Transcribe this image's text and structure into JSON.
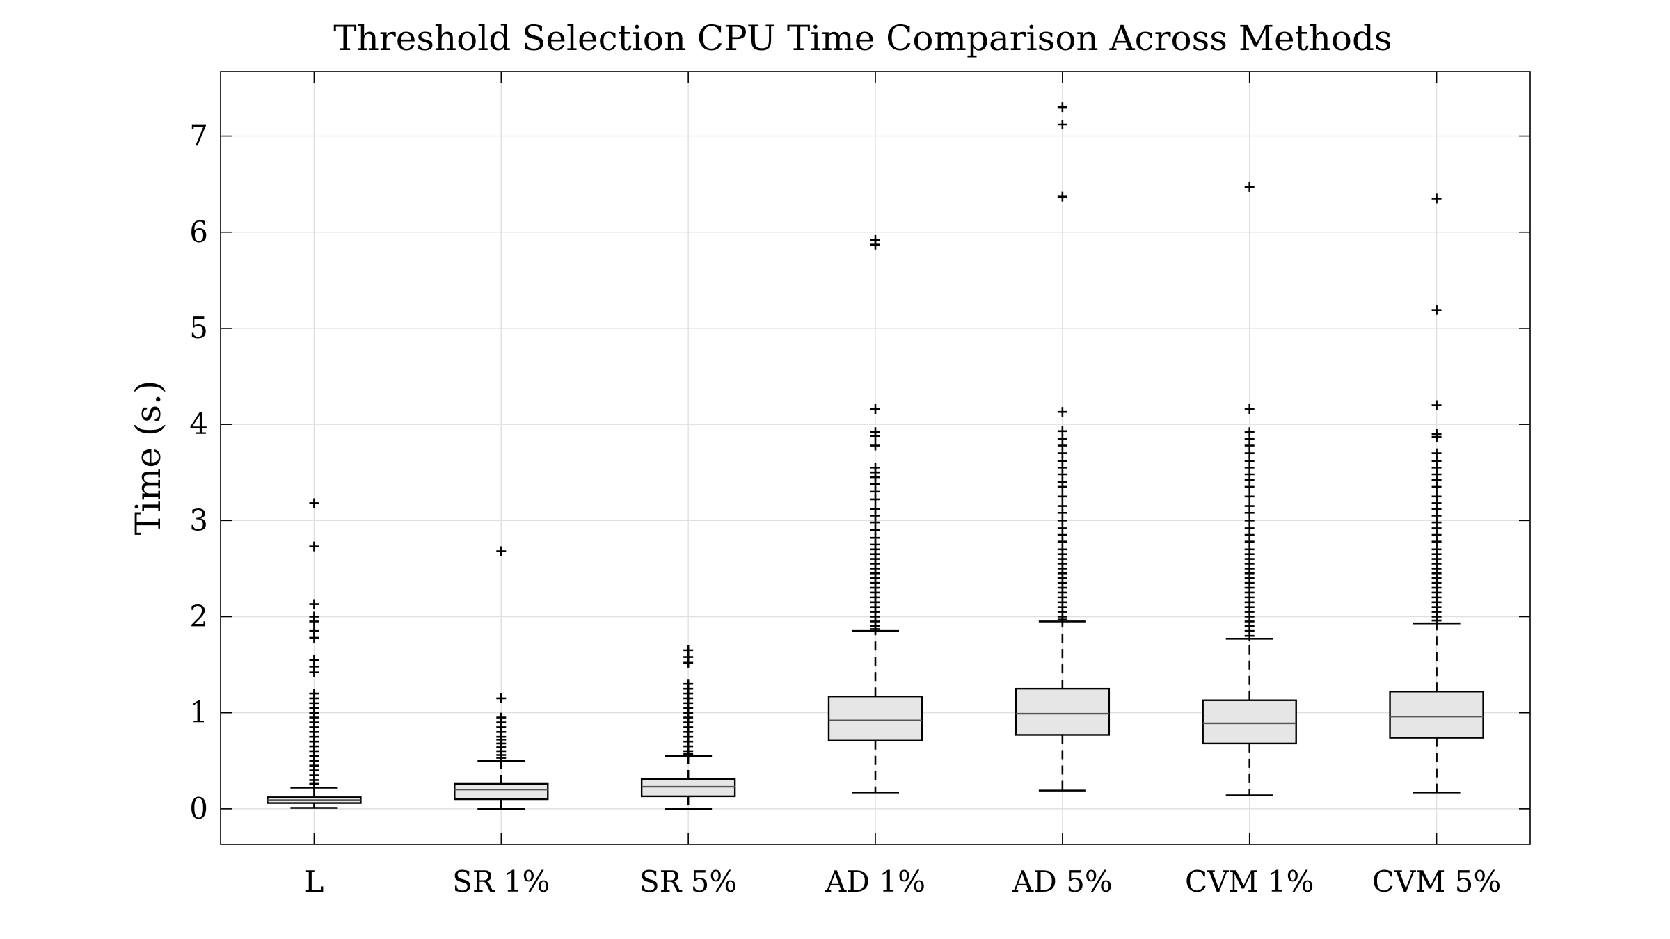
{
  "chart_data": {
    "type": "box",
    "title": "Threshold Selection CPU Time Comparison Across Methods",
    "xlabel": "",
    "ylabel": "Time (s.)",
    "ylim": [
      -0.37,
      7.67
    ],
    "yticks": [
      0,
      1,
      2,
      3,
      4,
      5,
      6,
      7
    ],
    "grid": true,
    "categories": [
      "L",
      "SR 1%",
      "SR 5%",
      "AD 1%",
      "AD 5%",
      "CVM 1%",
      "CVM 5%"
    ],
    "boxes": [
      {
        "category": "L",
        "whisker_low": 0.01,
        "q1": 0.06,
        "median": 0.09,
        "q3": 0.12,
        "whisker_high": 0.22,
        "outliers": [
          3.18,
          2.73,
          2.13,
          2.0,
          1.95,
          1.85,
          1.78,
          1.55,
          1.48,
          1.42,
          1.2,
          1.15,
          1.1,
          1.05,
          1.0,
          0.95,
          0.9,
          0.85,
          0.8,
          0.75,
          0.7,
          0.65,
          0.6,
          0.55,
          0.5,
          0.45,
          0.4,
          0.35,
          0.3,
          0.26
        ]
      },
      {
        "category": "SR 1%",
        "whisker_low": 0.0,
        "q1": 0.1,
        "median": 0.2,
        "q3": 0.26,
        "whisker_high": 0.5,
        "outliers": [
          2.68,
          1.15,
          0.95,
          0.9,
          0.85,
          0.8,
          0.75,
          0.72,
          0.68,
          0.64,
          0.6,
          0.56,
          0.53
        ]
      },
      {
        "category": "SR 5%",
        "whisker_low": 0.0,
        "q1": 0.13,
        "median": 0.23,
        "q3": 0.31,
        "whisker_high": 0.55,
        "outliers": [
          1.65,
          1.58,
          1.52,
          1.3,
          1.25,
          1.2,
          1.15,
          1.1,
          1.05,
          1.0,
          0.95,
          0.9,
          0.85,
          0.8,
          0.75,
          0.7,
          0.65,
          0.6,
          0.57
        ]
      },
      {
        "category": "AD 1%",
        "whisker_low": 0.17,
        "q1": 0.71,
        "median": 0.92,
        "q3": 1.17,
        "whisker_high": 1.85,
        "outliers": [
          5.92,
          5.87,
          4.16,
          3.92,
          3.88,
          3.78,
          3.55,
          3.5,
          3.45,
          3.38,
          3.3,
          3.22,
          3.12,
          3.05,
          2.98,
          2.9,
          2.82,
          2.75,
          2.7,
          2.65,
          2.6,
          2.55,
          2.5,
          2.45,
          2.4,
          2.35,
          2.3,
          2.25,
          2.2,
          2.15,
          2.1,
          2.05,
          2.0,
          1.95,
          1.9,
          1.87
        ]
      },
      {
        "category": "AD 5%",
        "whisker_low": 0.19,
        "q1": 0.77,
        "median": 0.99,
        "q3": 1.25,
        "whisker_high": 1.95,
        "outliers": [
          7.3,
          7.12,
          6.37,
          4.13,
          3.93,
          3.85,
          3.78,
          3.7,
          3.62,
          3.55,
          3.48,
          3.4,
          3.35,
          3.25,
          3.15,
          3.08,
          3.0,
          2.92,
          2.85,
          2.78,
          2.7,
          2.65,
          2.6,
          2.55,
          2.5,
          2.45,
          2.4,
          2.35,
          2.3,
          2.25,
          2.2,
          2.15,
          2.1,
          2.05,
          2.0,
          1.97
        ]
      },
      {
        "category": "CVM 1%",
        "whisker_low": 0.14,
        "q1": 0.68,
        "median": 0.89,
        "q3": 1.13,
        "whisker_high": 1.77,
        "outliers": [
          6.47,
          4.16,
          3.92,
          3.85,
          3.78,
          3.7,
          3.62,
          3.55,
          3.48,
          3.42,
          3.35,
          3.25,
          3.15,
          3.08,
          3.0,
          2.92,
          2.85,
          2.78,
          2.7,
          2.65,
          2.6,
          2.55,
          2.5,
          2.45,
          2.4,
          2.35,
          2.3,
          2.25,
          2.2,
          2.15,
          2.1,
          2.05,
          2.0,
          1.95,
          1.9,
          1.85,
          1.8
        ]
      },
      {
        "category": "CVM 5%",
        "whisker_low": 0.17,
        "q1": 0.74,
        "median": 0.96,
        "q3": 1.22,
        "whisker_high": 1.93,
        "outliers": [
          6.35,
          5.19,
          4.2,
          3.9,
          3.87,
          3.7,
          3.62,
          3.55,
          3.48,
          3.42,
          3.35,
          3.25,
          3.18,
          3.12,
          3.05,
          2.98,
          2.92,
          2.85,
          2.78,
          2.7,
          2.65,
          2.6,
          2.55,
          2.5,
          2.45,
          2.4,
          2.35,
          2.3,
          2.25,
          2.2,
          2.15,
          2.1,
          2.05,
          2.0,
          1.96
        ]
      }
    ],
    "colors": {
      "box_fill": "#e6e6e6",
      "median": "#555555",
      "grid": "#e0e0e0",
      "axis": "#000000"
    }
  }
}
